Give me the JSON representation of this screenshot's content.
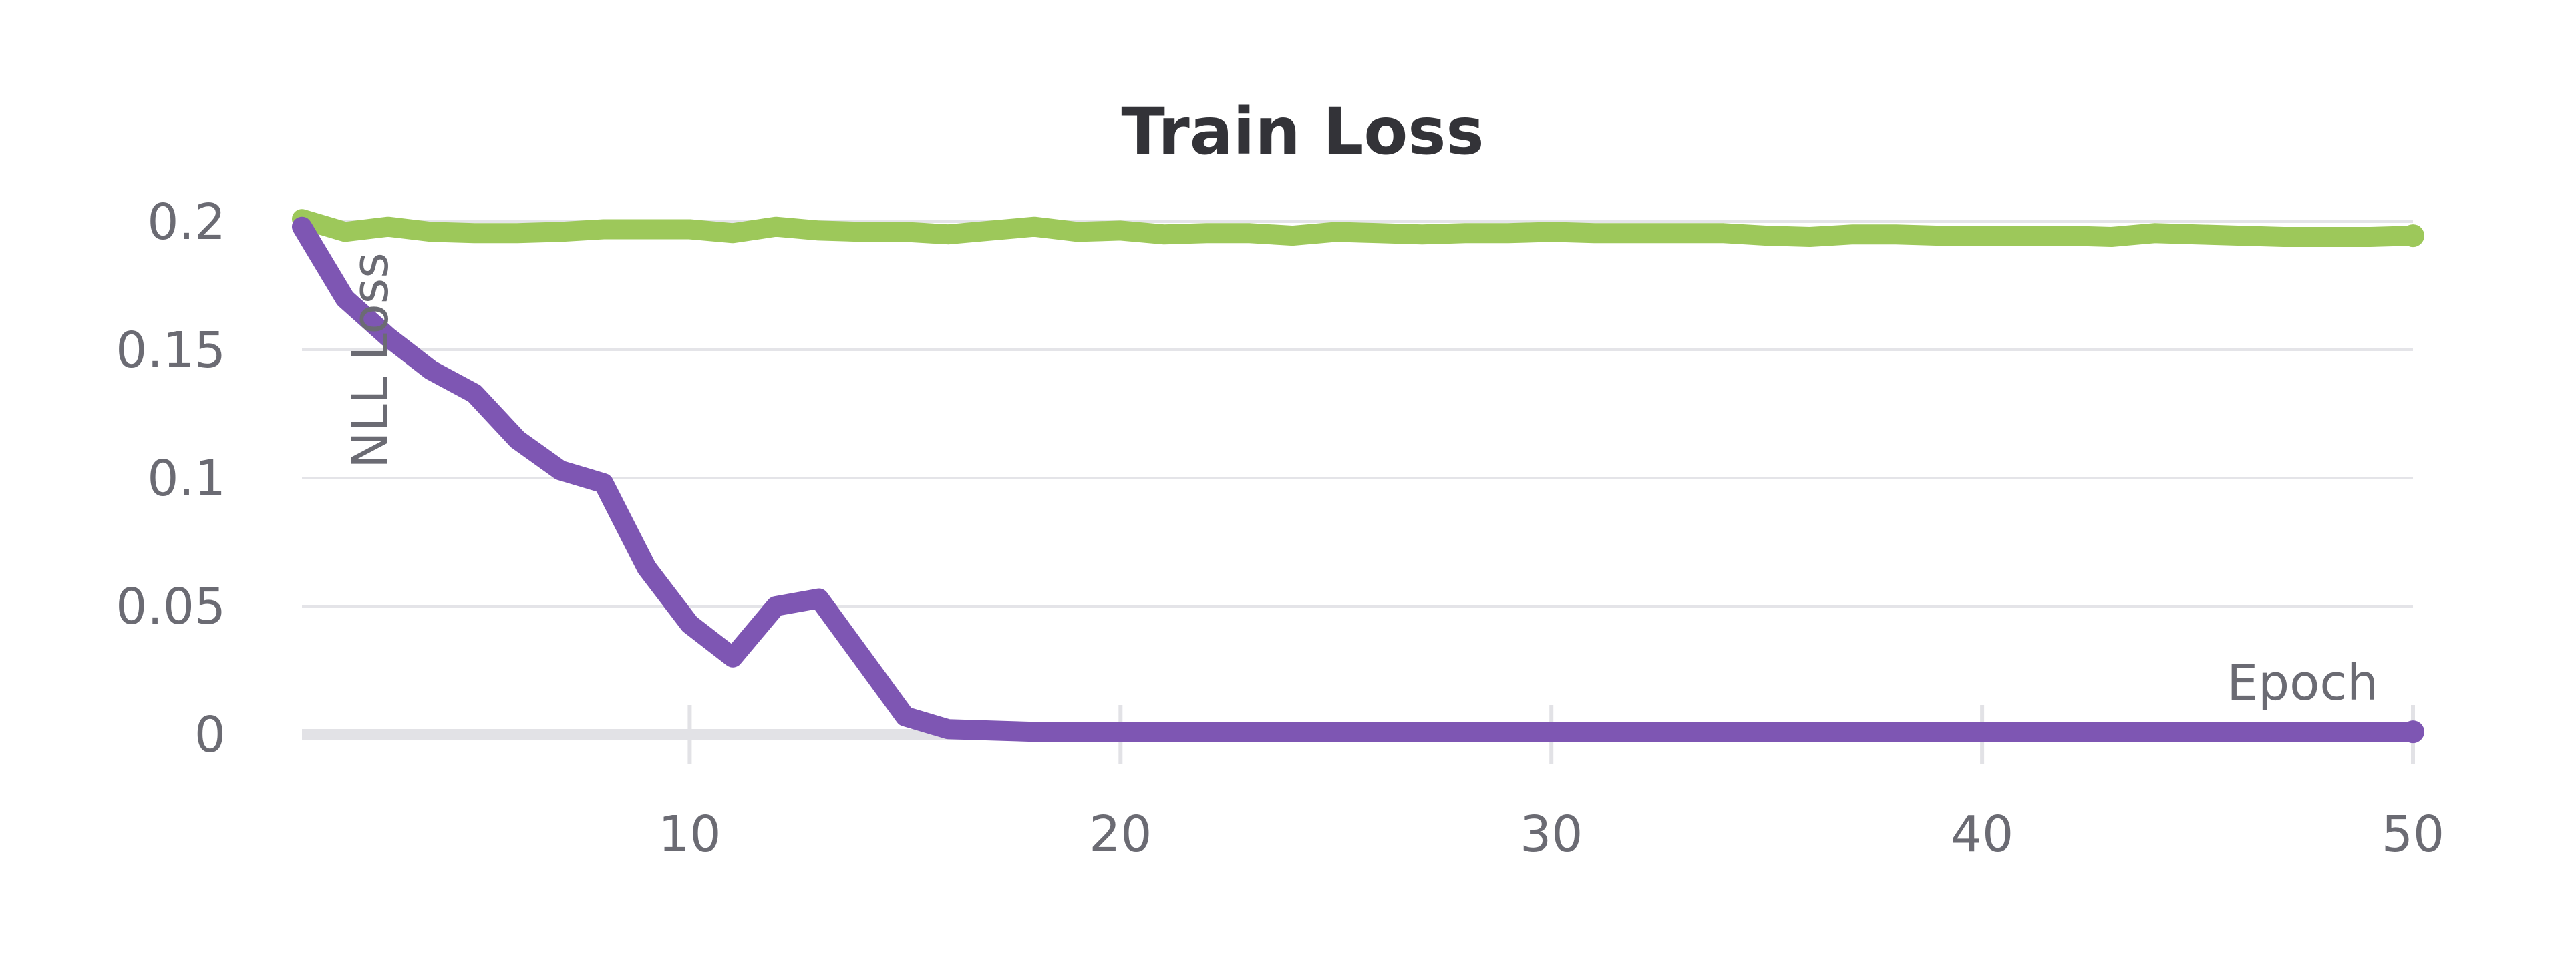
{
  "chart_data": {
    "type": "line",
    "title": "Train Loss",
    "xlabel": "Epoch",
    "ylabel": "NLL Loss",
    "xlim": [
      1,
      50
    ],
    "ylim": [
      0,
      0.2
    ],
    "x_ticks": [
      10,
      20,
      30,
      40,
      50
    ],
    "x_tick_labels": [
      "10",
      "20",
      "30",
      "40",
      "50"
    ],
    "y_ticks": [
      0,
      0.05,
      0.1,
      0.15,
      0.2
    ],
    "y_tick_labels": [
      "0",
      "0.05",
      "0.1",
      "0.15",
      "0.2"
    ],
    "grid": true,
    "legend": "none",
    "x": [
      1,
      2,
      3,
      4,
      5,
      6,
      7,
      8,
      9,
      10,
      11,
      12,
      13,
      14,
      15,
      16,
      17,
      18,
      19,
      20,
      21,
      22,
      23,
      24,
      25,
      26,
      27,
      28,
      29,
      30,
      31,
      32,
      33,
      34,
      35,
      36,
      37,
      38,
      39,
      40,
      41,
      42,
      43,
      44,
      45,
      46,
      47,
      48,
      49,
      50
    ],
    "series": [
      {
        "color": "#9dc85a",
        "values": [
          0.201,
          0.196,
          0.198,
          0.196,
          0.1955,
          0.1955,
          0.196,
          0.197,
          0.197,
          0.197,
          0.1955,
          0.198,
          0.1965,
          0.196,
          0.196,
          0.195,
          0.1965,
          0.198,
          0.196,
          0.1965,
          0.195,
          0.1955,
          0.1955,
          0.1945,
          0.196,
          0.1955,
          0.195,
          0.1955,
          0.1955,
          0.196,
          0.1955,
          0.1955,
          0.1955,
          0.1955,
          0.1945,
          0.194,
          0.195,
          0.195,
          0.1945,
          0.1945,
          0.1945,
          0.1945,
          0.194,
          0.1955,
          0.195,
          0.1945,
          0.194,
          0.194,
          0.194,
          0.1945
        ]
      },
      {
        "color": "#7e56b3",
        "values": [
          0.198,
          0.17,
          0.155,
          0.142,
          0.133,
          0.115,
          0.103,
          0.098,
          0.065,
          0.043,
          0.03,
          0.05,
          0.053,
          0.03,
          0.007,
          0.002,
          0.0015,
          0.001,
          0.001,
          0.001,
          0.001,
          0.001,
          0.001,
          0.001,
          0.001,
          0.001,
          0.001,
          0.001,
          0.001,
          0.001,
          0.001,
          0.001,
          0.001,
          0.001,
          0.001,
          0.001,
          0.001,
          0.001,
          0.001,
          0.001,
          0.001,
          0.001,
          0.001,
          0.001,
          0.001,
          0.001,
          0.001,
          0.001,
          0.001,
          0.001
        ]
      }
    ]
  }
}
